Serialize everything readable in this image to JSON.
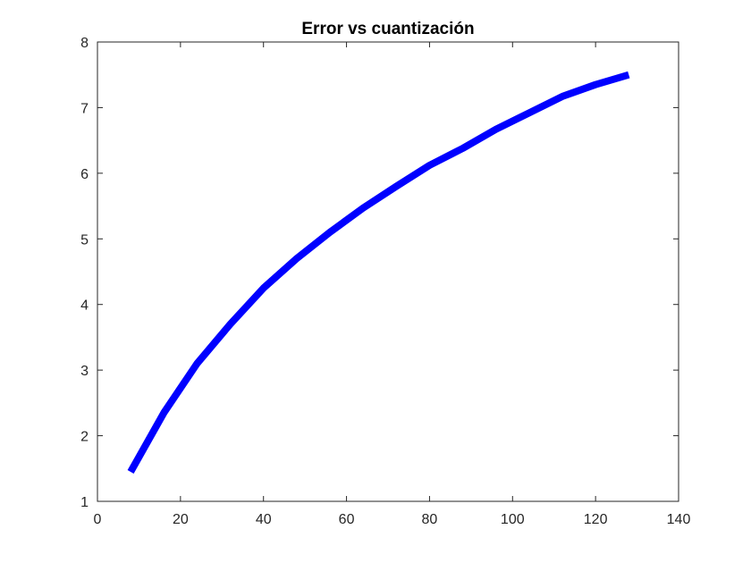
{
  "chart_data": {
    "type": "line",
    "title": "Error vs cuantización",
    "xlabel": "",
    "ylabel": "",
    "xlim": [
      0,
      140
    ],
    "ylim": [
      1,
      8
    ],
    "xticks": [
      0,
      20,
      40,
      60,
      80,
      100,
      120,
      140
    ],
    "yticks": [
      1,
      2,
      3,
      4,
      5,
      6,
      7,
      8
    ],
    "grid": false,
    "legend": "none",
    "series": [
      {
        "color": "#0000ff",
        "x": [
          8,
          16,
          24,
          32,
          40,
          48,
          56,
          64,
          72,
          80,
          88,
          96,
          104,
          112,
          120,
          128
        ],
        "y": [
          1.45,
          2.35,
          3.1,
          3.7,
          4.25,
          4.7,
          5.1,
          5.47,
          5.8,
          6.12,
          6.38,
          6.67,
          6.92,
          7.17,
          7.35,
          7.5
        ]
      }
    ]
  }
}
